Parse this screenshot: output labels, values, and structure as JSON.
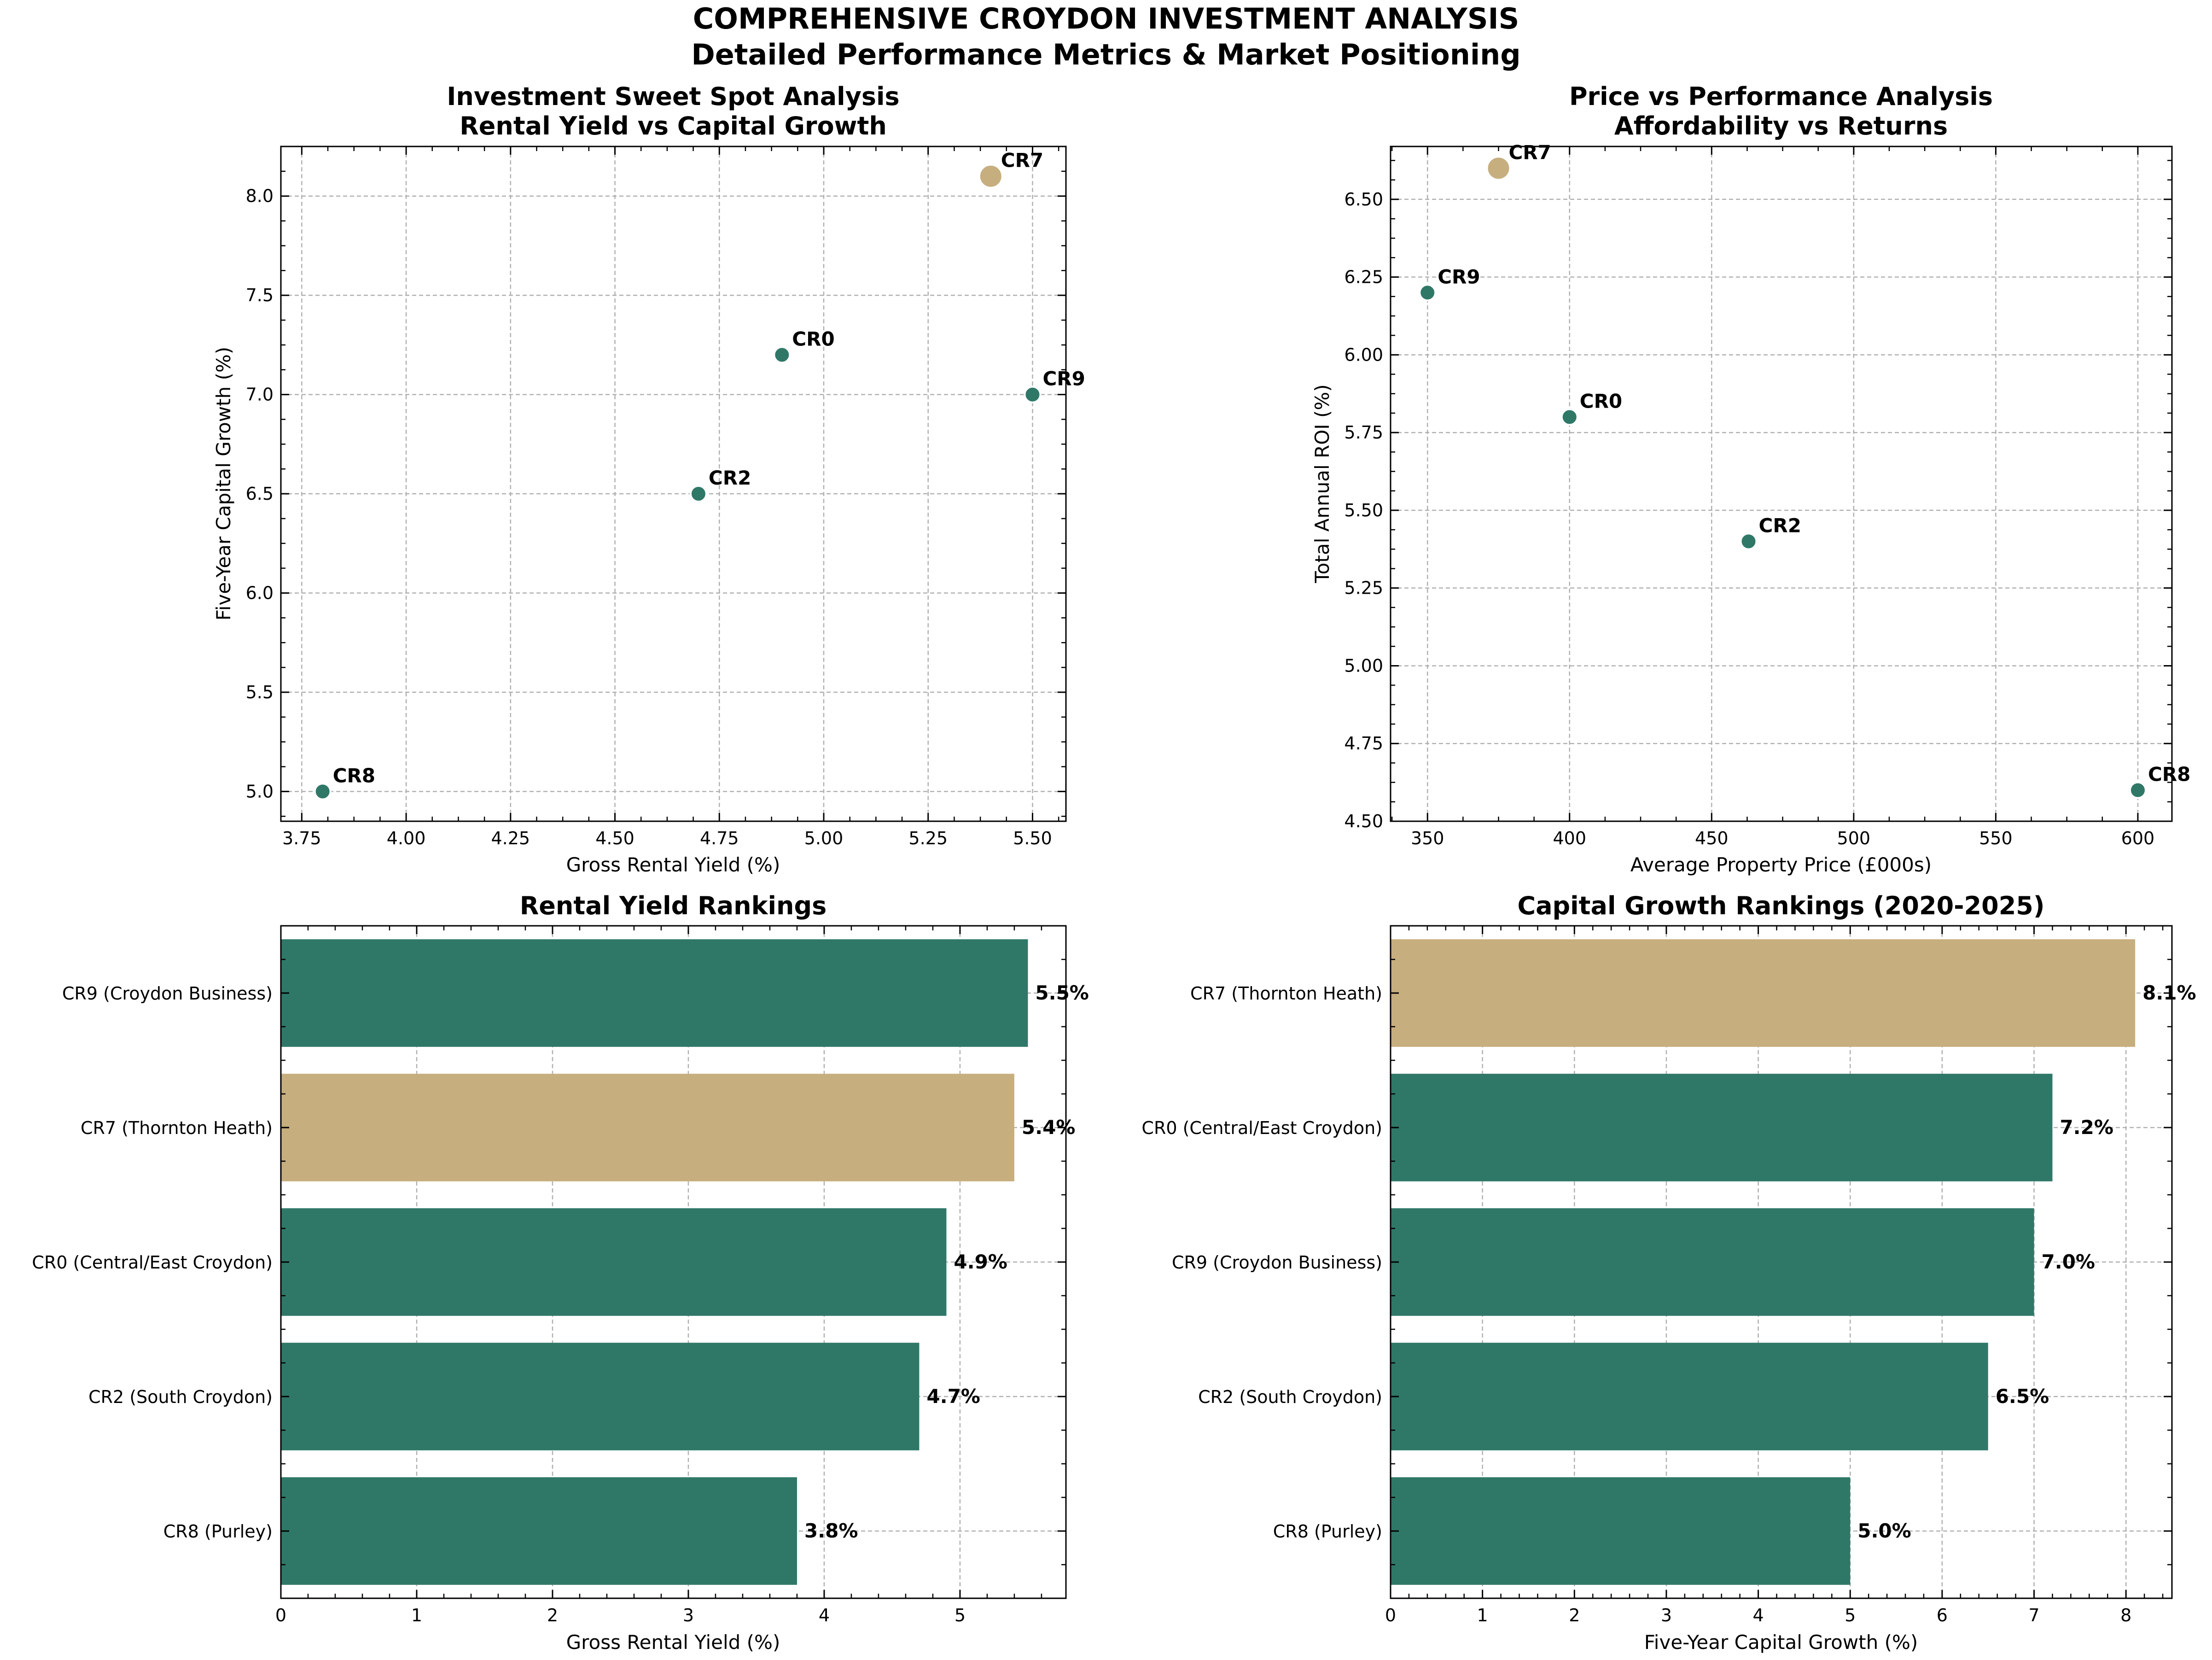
{
  "figure": {
    "title_line1": "COMPREHENSIVE CROYDON INVESTMENT ANALYSIS",
    "title_line2": "Detailed Performance Metrics & Market Positioning"
  },
  "colors": {
    "primary": "#2f7868",
    "highlight": "#c7ae7e",
    "grid": "#b0b0b0"
  },
  "chart_data": [
    {
      "type": "scatter",
      "title_line1": "Investment Sweet Spot Analysis",
      "title_line2": "Rental Yield vs Capital Growth",
      "xlabel": "Gross Rental Yield (%)",
      "ylabel": "Five-Year Capital Growth (%)",
      "xlim": [
        3.7,
        5.58
      ],
      "ylim": [
        4.85,
        8.25
      ],
      "xticks": [
        3.75,
        4.0,
        4.25,
        4.5,
        4.75,
        5.0,
        5.25,
        5.5
      ],
      "yticks": [
        5.0,
        5.5,
        6.0,
        6.5,
        7.0,
        7.5,
        8.0
      ],
      "xtick_labels": [
        "3.75",
        "4.00",
        "4.25",
        "4.50",
        "4.75",
        "5.00",
        "5.25",
        "5.50"
      ],
      "ytick_labels": [
        "5.0",
        "5.5",
        "6.0",
        "6.5",
        "7.0",
        "7.5",
        "8.0"
      ],
      "points": [
        {
          "label": "CR0",
          "x": 4.9,
          "y": 7.2,
          "highlight": false
        },
        {
          "label": "CR2",
          "x": 4.7,
          "y": 6.5,
          "highlight": false
        },
        {
          "label": "CR7",
          "x": 5.4,
          "y": 8.1,
          "highlight": true
        },
        {
          "label": "CR8",
          "x": 3.8,
          "y": 5.0,
          "highlight": false
        },
        {
          "label": "CR9",
          "x": 5.5,
          "y": 7.0,
          "highlight": false
        }
      ]
    },
    {
      "type": "scatter",
      "title_line1": "Price vs Performance Analysis",
      "title_line2": "Affordability vs Returns",
      "xlabel": "Average Property Price (£000s)",
      "ylabel": "Total Annual ROI (%)",
      "xlim": [
        337,
        612
      ],
      "ylim": [
        4.5,
        6.67
      ],
      "xticks": [
        350,
        400,
        450,
        500,
        550,
        600
      ],
      "yticks": [
        4.5,
        4.75,
        5.0,
        5.25,
        5.5,
        5.75,
        6.0,
        6.25,
        6.5
      ],
      "xtick_labels": [
        "350",
        "400",
        "450",
        "500",
        "550",
        "600"
      ],
      "ytick_labels": [
        "4.50",
        "4.75",
        "5.00",
        "5.25",
        "5.50",
        "5.75",
        "6.00",
        "6.25",
        "6.50"
      ],
      "points": [
        {
          "label": "CR0",
          "x": 400,
          "y": 5.8,
          "highlight": false
        },
        {
          "label": "CR2",
          "x": 463,
          "y": 5.4,
          "highlight": false
        },
        {
          "label": "CR7",
          "x": 375,
          "y": 6.6,
          "highlight": true
        },
        {
          "label": "CR8",
          "x": 600,
          "y": 4.6,
          "highlight": false
        },
        {
          "label": "CR9",
          "x": 350,
          "y": 6.2,
          "highlight": false
        }
      ]
    },
    {
      "type": "bar",
      "orientation": "horizontal",
      "title": "Rental Yield Rankings",
      "xlabel": "Gross Rental Yield (%)",
      "xlim": [
        0,
        5.78
      ],
      "xticks": [
        0,
        1,
        2,
        3,
        4,
        5
      ],
      "xtick_labels": [
        "0",
        "1",
        "2",
        "3",
        "4",
        "5"
      ],
      "categories": [
        "CR9 (Croydon Business)",
        "CR7 (Thornton Heath)",
        "CR0 (Central/East Croydon)",
        "CR2 (South Croydon)",
        "CR8 (Purley)"
      ],
      "values": [
        5.5,
        5.4,
        4.9,
        4.7,
        3.8
      ],
      "value_labels": [
        "5.5%",
        "5.4%",
        "4.9%",
        "4.7%",
        "3.8%"
      ],
      "highlight": [
        false,
        true,
        false,
        false,
        false
      ]
    },
    {
      "type": "bar",
      "orientation": "horizontal",
      "title": "Capital Growth Rankings (2020-2025)",
      "xlabel": "Five-Year Capital Growth (%)",
      "xlim": [
        0,
        8.5
      ],
      "xticks": [
        0,
        1,
        2,
        3,
        4,
        5,
        6,
        7,
        8
      ],
      "xtick_labels": [
        "0",
        "1",
        "2",
        "3",
        "4",
        "5",
        "6",
        "7",
        "8"
      ],
      "categories": [
        "CR7 (Thornton Heath)",
        "CR0 (Central/East Croydon)",
        "CR9 (Croydon Business)",
        "CR2 (South Croydon)",
        "CR8 (Purley)"
      ],
      "values": [
        8.1,
        7.2,
        7.0,
        6.5,
        5.0
      ],
      "value_labels": [
        "8.1%",
        "7.2%",
        "7.0%",
        "6.5%",
        "5.0%"
      ],
      "highlight": [
        true,
        false,
        false,
        false,
        false
      ]
    }
  ]
}
